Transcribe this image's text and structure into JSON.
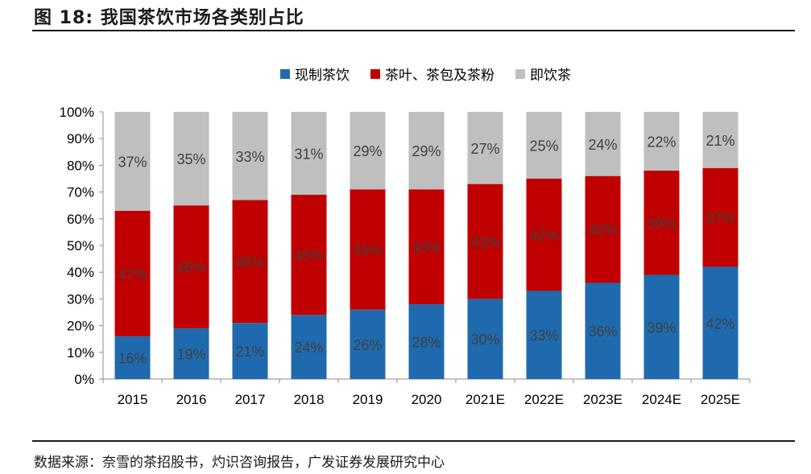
{
  "figure": {
    "title": "图 18: 我国茶饮市场各类别占比",
    "source": "数据来源：奈雪的茶招股书，灼识咨询报告，广发证券发展研究中心"
  },
  "chart_data": {
    "type": "bar",
    "stacked": true,
    "percent_stacked": true,
    "title": "",
    "xlabel": "",
    "ylabel": "",
    "categories": [
      "2015",
      "2016",
      "2017",
      "2018",
      "2019",
      "2020",
      "2021E",
      "2022E",
      "2023E",
      "2024E",
      "2025E"
    ],
    "series": [
      {
        "name": "现制茶饮",
        "color": "#1F6AAE",
        "values": [
          16,
          19,
          21,
          24,
          26,
          28,
          30,
          33,
          36,
          39,
          42
        ]
      },
      {
        "name": "茶叶、茶包及茶粉",
        "color": "#C00000",
        "values": [
          47,
          46,
          46,
          45,
          45,
          43,
          43,
          42,
          40,
          39,
          37
        ]
      },
      {
        "name": "即饮茶",
        "color": "#BFBFBF",
        "values": [
          37,
          35,
          33,
          31,
          29,
          29,
          27,
          25,
          24,
          22,
          21
        ]
      }
    ],
    "yticks": [
      "0%",
      "10%",
      "20%",
      "30%",
      "40%",
      "50%",
      "60%",
      "70%",
      "80%",
      "90%",
      "100%"
    ],
    "ylim": [
      0,
      100
    ],
    "grid": false,
    "legend": "top-center",
    "label_suffix": "%"
  }
}
